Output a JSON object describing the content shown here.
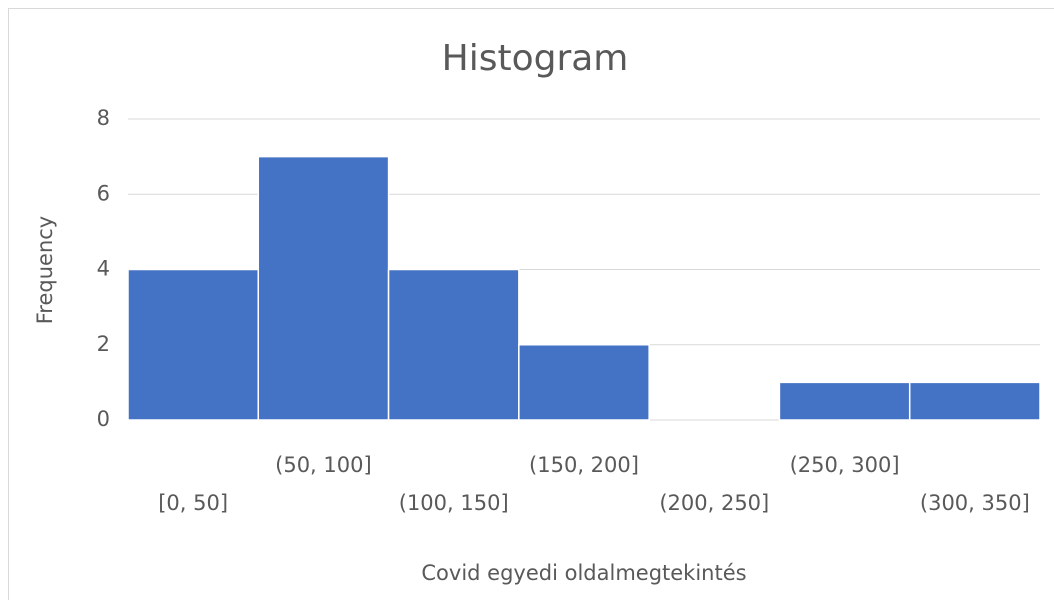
{
  "chart_data": {
    "type": "bar",
    "title": "Histogram",
    "x_label": "Covid egyedi oldalmegtekintés",
    "y_label": "Frequency",
    "categories": [
      "[0, 50]",
      "(50, 100]",
      "(100, 150]",
      "(150, 200]",
      "(200, 250]",
      "(250, 300]",
      "(300, 350]"
    ],
    "values": [
      4,
      7,
      4,
      2,
      0,
      1,
      1
    ],
    "color": "#4472c4",
    "ylim": [
      0,
      8
    ],
    "yticks": [
      0,
      2,
      4,
      6,
      8
    ],
    "grid": true
  }
}
